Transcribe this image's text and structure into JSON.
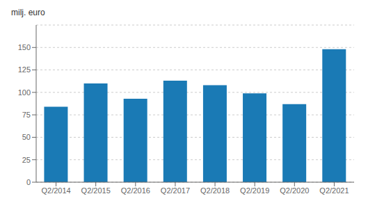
{
  "chart_data": {
    "type": "bar",
    "ylabel": "milj. euro",
    "categories": [
      "Q2/2014",
      "Q2/2015",
      "Q2/2016",
      "Q2/2017",
      "Q2/2018",
      "Q2/2019",
      "Q2/2020",
      "Q2/2021"
    ],
    "values": [
      84,
      110,
      93,
      113,
      108,
      99,
      87,
      148
    ],
    "color": "#1a7ab5",
    "ylim": [
      0,
      175
    ],
    "yticks": [
      0,
      25,
      50,
      75,
      100,
      125,
      150
    ],
    "grid": true
  }
}
